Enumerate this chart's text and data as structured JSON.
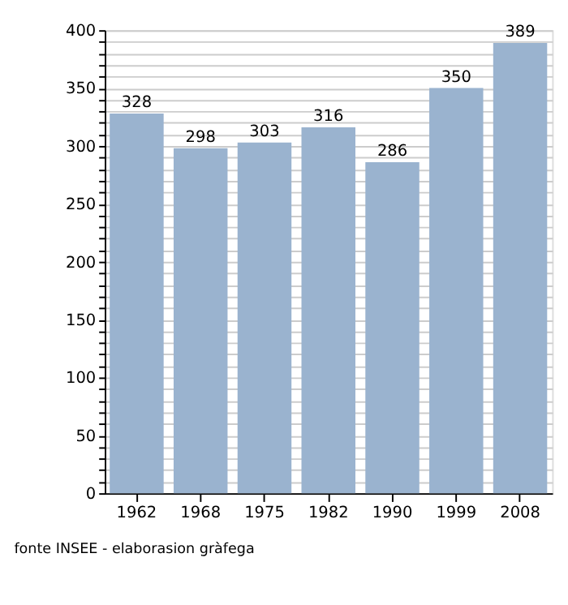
{
  "chart_data": {
    "type": "bar",
    "categories": [
      "1962",
      "1968",
      "1975",
      "1982",
      "1990",
      "1999",
      "2008"
    ],
    "values": [
      328,
      298,
      303,
      316,
      286,
      350,
      389
    ],
    "color": "#9ab3cf",
    "ylim": [
      0,
      400
    ],
    "yticks": [
      0,
      {
        "value": 10,
        "label": null
      },
      {
        "value": 20,
        "label": null
      },
      {
        "value": 30,
        "label": null
      },
      {
        "value": 40,
        "label": null
      },
      50,
      {
        "value": 60,
        "label": null
      },
      {
        "value": 70,
        "label": null
      },
      {
        "value": 80,
        "label": null
      },
      {
        "value": 90,
        "label": null
      },
      100,
      {
        "value": 110,
        "label": null
      },
      {
        "value": 120,
        "label": null
      },
      {
        "value": 130,
        "label": null
      },
      {
        "value": 140,
        "label": null
      },
      150,
      {
        "value": 160,
        "label": null
      },
      {
        "value": 170,
        "label": null
      },
      {
        "value": 180,
        "label": null
      },
      {
        "value": 190,
        "label": null
      },
      200,
      {
        "value": 210,
        "label": null
      },
      {
        "value": 220,
        "label": null
      },
      {
        "value": 230,
        "label": null
      },
      {
        "value": 240,
        "label": null
      },
      250,
      {
        "value": 260,
        "label": null
      },
      {
        "value": 270,
        "label": null
      },
      {
        "value": 280,
        "label": null
      },
      {
        "value": 290,
        "label": null
      },
      300,
      {
        "value": 310,
        "label": null
      },
      {
        "value": 320,
        "label": null
      },
      {
        "value": 330,
        "label": null
      },
      {
        "value": 340,
        "label": null
      },
      350,
      {
        "value": 360,
        "label": null
      },
      {
        "value": 370,
        "label": null
      },
      {
        "value": 380,
        "label": null
      },
      {
        "value": 390,
        "label": null
      },
      400
    ],
    "grid": "y",
    "data_labels": true,
    "annotations": [
      "fonte INSEE - elaborasion gràfega"
    ]
  }
}
